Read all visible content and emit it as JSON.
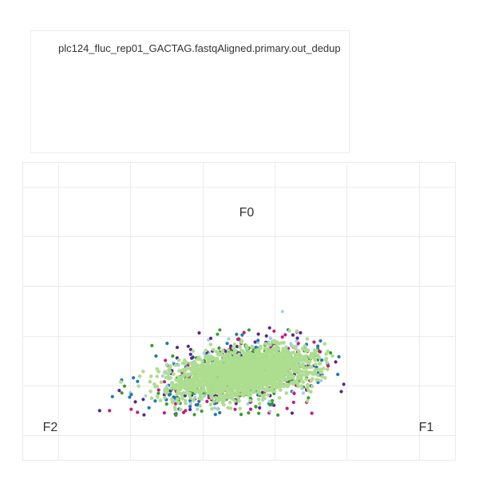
{
  "legend": {
    "title": "plc124_fluc_rep01_GACTAG.fastqAligned.primary.out_dedup"
  },
  "chart_data": {
    "type": "scatter",
    "title": "plc124_fluc_rep01_GACTAG.fastqAligned.primary.out_dedup",
    "subtitle": "",
    "xlabel": "",
    "ylabel": "",
    "grid": true,
    "legend_position": "top-left",
    "corner_labels": {
      "top": "F0",
      "right": "F1",
      "left": "F2"
    },
    "coordinate_system": "ternary (fraction of reads per frame F0, F1, F2)",
    "point_colors": [
      "#addd8e",
      "#a6cee3",
      "#1f78b4",
      "#33a02c",
      "#c51b7d",
      "#54278f"
    ],
    "dense_core": {
      "color": "#addd8e",
      "center": {
        "F0": 0.28,
        "F1": 0.37,
        "F2": 0.35
      },
      "spread": 0.09
    },
    "series": [
      {
        "color": "#a6cee3",
        "points": [
          [
            0.4,
            0.3,
            0.3
          ],
          [
            0.42,
            0.28,
            0.3
          ],
          [
            0.38,
            0.33,
            0.29
          ],
          [
            0.3,
            0.52,
            0.18
          ],
          [
            0.26,
            0.56,
            0.18
          ],
          [
            0.2,
            0.62,
            0.18
          ],
          [
            0.45,
            0.3,
            0.25
          ],
          [
            0.22,
            0.25,
            0.53
          ],
          [
            0.18,
            0.3,
            0.52
          ],
          [
            0.35,
            0.4,
            0.25
          ],
          [
            0.12,
            0.36,
            0.52
          ],
          [
            0.5,
            0.22,
            0.28
          ],
          [
            0.33,
            0.2,
            0.47
          ],
          [
            0.15,
            0.62,
            0.23
          ],
          [
            0.48,
            0.35,
            0.17
          ],
          [
            0.05,
            0.4,
            0.55
          ],
          [
            0.25,
            0.45,
            0.3
          ],
          [
            0.36,
            0.46,
            0.18
          ],
          [
            0.1,
            0.3,
            0.6
          ],
          [
            0.28,
            0.3,
            0.42
          ]
        ]
      },
      {
        "color": "#1f78b4",
        "points": [
          [
            0.38,
            0.35,
            0.27
          ],
          [
            0.33,
            0.28,
            0.39
          ],
          [
            0.47,
            0.23,
            0.3
          ],
          [
            0.24,
            0.5,
            0.26
          ],
          [
            0.08,
            0.55,
            0.37
          ],
          [
            0.16,
            0.58,
            0.26
          ],
          [
            0.12,
            0.24,
            0.64
          ],
          [
            0.36,
            0.24,
            0.4
          ],
          [
            0.42,
            0.41,
            0.17
          ],
          [
            0.2,
            0.2,
            0.6
          ],
          [
            0.06,
            0.32,
            0.62
          ],
          [
            0.3,
            0.4,
            0.3
          ],
          [
            0.44,
            0.34,
            0.22
          ],
          [
            0.22,
            0.63,
            0.15
          ],
          [
            0.02,
            0.43,
            0.55
          ],
          [
            0.14,
            0.45,
            0.41
          ],
          [
            0.4,
            0.2,
            0.4
          ],
          [
            0.27,
            0.52,
            0.21
          ],
          [
            0.05,
            0.2,
            0.75
          ],
          [
            0.34,
            0.46,
            0.2
          ]
        ]
      },
      {
        "color": "#33a02c",
        "points": [
          [
            0.43,
            0.31,
            0.26
          ],
          [
            0.37,
            0.27,
            0.36
          ],
          [
            0.19,
            0.6,
            0.21
          ],
          [
            0.1,
            0.55,
            0.35
          ],
          [
            0.08,
            0.28,
            0.64
          ],
          [
            0.3,
            0.22,
            0.48
          ],
          [
            0.46,
            0.29,
            0.25
          ],
          [
            0.25,
            0.58,
            0.17
          ],
          [
            0.14,
            0.22,
            0.64
          ],
          [
            0.32,
            0.44,
            0.24
          ],
          [
            0.03,
            0.37,
            0.6
          ],
          [
            0.39,
            0.39,
            0.22
          ],
          [
            0.21,
            0.32,
            0.47
          ],
          [
            0.12,
            0.65,
            0.23
          ],
          [
            0.49,
            0.26,
            0.25
          ],
          [
            0.01,
            0.5,
            0.49
          ],
          [
            0.28,
            0.26,
            0.46
          ],
          [
            0.17,
            0.52,
            0.31
          ],
          [
            0.44,
            0.22,
            0.34
          ],
          [
            0.06,
            0.52,
            0.42
          ]
        ]
      },
      {
        "color": "#c51b7d",
        "points": [
          [
            0.5,
            0.25,
            0.25
          ],
          [
            0.41,
            0.33,
            0.26
          ],
          [
            0.35,
            0.22,
            0.43
          ],
          [
            0.23,
            0.6,
            0.17
          ],
          [
            0.09,
            0.62,
            0.29
          ],
          [
            0.15,
            0.28,
            0.57
          ],
          [
            0.05,
            0.62,
            0.33
          ],
          [
            0.31,
            0.48,
            0.21
          ],
          [
            0.46,
            0.37,
            0.17
          ],
          [
            0.26,
            0.22,
            0.52
          ],
          [
            0.11,
            0.31,
            0.58
          ],
          [
            0.38,
            0.44,
            0.18
          ],
          [
            0.02,
            0.58,
            0.4
          ],
          [
            0.18,
            0.44,
            0.38
          ],
          [
            0.44,
            0.26,
            0.3
          ],
          [
            0.03,
            0.09,
            0.88
          ],
          [
            0.02,
            0.18,
            0.8
          ],
          [
            0.01,
            0.3,
            0.69
          ],
          [
            0.02,
            0.71,
            0.27
          ],
          [
            0.29,
            0.34,
            0.37
          ]
        ]
      },
      {
        "color": "#54278f",
        "points": [
          [
            0.39,
            0.37,
            0.24
          ],
          [
            0.34,
            0.25,
            0.41
          ],
          [
            0.45,
            0.27,
            0.28
          ],
          [
            0.21,
            0.56,
            0.23
          ],
          [
            0.07,
            0.57,
            0.36
          ],
          [
            0.13,
            0.27,
            0.6
          ],
          [
            0.27,
            0.48,
            0.25
          ],
          [
            0.42,
            0.21,
            0.37
          ],
          [
            0.17,
            0.62,
            0.21
          ],
          [
            0.32,
            0.29,
            0.39
          ],
          [
            0.04,
            0.33,
            0.63
          ],
          [
            0.48,
            0.31,
            0.21
          ],
          [
            0.19,
            0.35,
            0.46
          ],
          [
            0.11,
            0.48,
            0.41
          ],
          [
            0.36,
            0.41,
            0.23
          ],
          [
            0.03,
            0.06,
            0.91
          ],
          [
            0.02,
            0.65,
            0.33
          ],
          [
            0.24,
            0.41,
            0.35
          ],
          [
            0.08,
            0.45,
            0.47
          ],
          [
            0.4,
            0.25,
            0.35
          ]
        ]
      }
    ]
  }
}
